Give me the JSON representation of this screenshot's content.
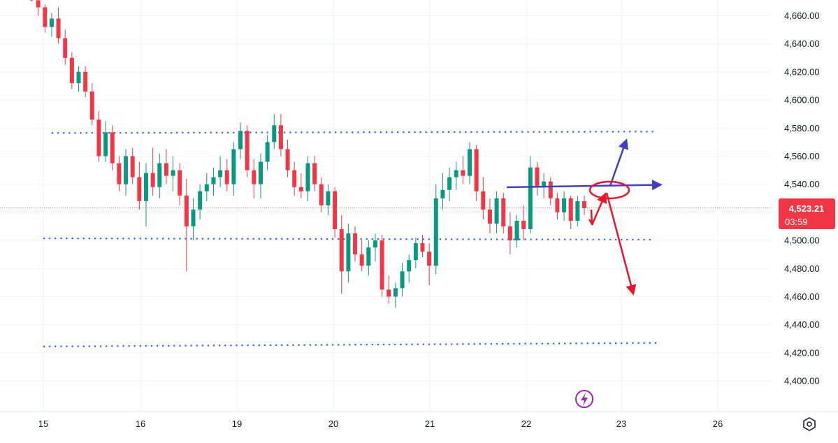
{
  "chart_data": {
    "type": "candlestick",
    "symbol": "",
    "x_dates": [
      "15",
      "16",
      "19",
      "20",
      "21",
      "22",
      "23",
      "26"
    ],
    "y_ticks": [
      "4,660.00",
      "4,640.00",
      "4,620.00",
      "4,600.00",
      "4,580.00",
      "4,560.00",
      "4,540.00",
      "4,520.00",
      "4,500.00",
      "4,480.00",
      "4,460.00",
      "4,440.00",
      "4,420.00",
      "4,400.00"
    ],
    "y_tick_values": [
      4660,
      4640,
      4620,
      4600,
      4580,
      4560,
      4540,
      4520,
      4500,
      4480,
      4460,
      4440,
      4420,
      4400
    ],
    "ylim": [
      4382,
      4671
    ],
    "current_price": 4523.21,
    "current_price_label": "4,523.21",
    "countdown_label": "03:59",
    "up_color": "#089981",
    "down_color": "#f23645",
    "candles": [
      [
        4674,
        4678,
        4670,
        4671
      ],
      [
        4671,
        4677,
        4660,
        4666
      ],
      [
        4666,
        4668,
        4648,
        4652
      ],
      [
        4652,
        4662,
        4645,
        4658
      ],
      [
        4658,
        4666,
        4640,
        4644
      ],
      [
        4644,
        4650,
        4625,
        4630
      ],
      [
        4630,
        4634,
        4608,
        4612
      ],
      [
        4612,
        4624,
        4606,
        4620
      ],
      [
        4620,
        4624,
        4602,
        4606
      ],
      [
        4606,
        4612,
        4582,
        4586
      ],
      [
        4586,
        4592,
        4556,
        4560
      ],
      [
        4560,
        4585,
        4556,
        4577
      ],
      [
        4577,
        4582,
        4550,
        4555
      ],
      [
        4555,
        4560,
        4535,
        4540
      ],
      [
        4540,
        4565,
        4532,
        4560
      ],
      [
        4560,
        4566,
        4540,
        4545
      ],
      [
        4545,
        4556,
        4522,
        4528
      ],
      [
        4528,
        4555,
        4510,
        4548
      ],
      [
        4548,
        4566,
        4532,
        4538
      ],
      [
        4538,
        4562,
        4530,
        4555
      ],
      [
        4555,
        4565,
        4540,
        4546
      ],
      [
        4546,
        4560,
        4535,
        4550
      ],
      [
        4550,
        4555,
        4525,
        4532
      ],
      [
        4532,
        4544,
        4478,
        4510
      ],
      [
        4510,
        4530,
        4500,
        4522
      ],
      [
        4522,
        4540,
        4515,
        4535
      ],
      [
        4535,
        4548,
        4528,
        4540
      ],
      [
        4540,
        4552,
        4532,
        4545
      ],
      [
        4545,
        4560,
        4538,
        4550
      ],
      [
        4550,
        4558,
        4535,
        4540
      ],
      [
        4540,
        4570,
        4532,
        4565
      ],
      [
        4565,
        4584,
        4558,
        4578
      ],
      [
        4578,
        4582,
        4545,
        4550
      ],
      [
        4550,
        4558,
        4530,
        4540
      ],
      [
        4540,
        4562,
        4530,
        4556
      ],
      [
        4556,
        4575,
        4550,
        4570
      ],
      [
        4570,
        4590,
        4565,
        4582
      ],
      [
        4582,
        4590,
        4560,
        4565
      ],
      [
        4565,
        4572,
        4545,
        4550
      ],
      [
        4550,
        4556,
        4532,
        4538
      ],
      [
        4538,
        4548,
        4530,
        4535
      ],
      [
        4535,
        4560,
        4528,
        4555
      ],
      [
        4555,
        4560,
        4535,
        4540
      ],
      [
        4540,
        4545,
        4520,
        4525
      ],
      [
        4525,
        4540,
        4518,
        4535
      ],
      [
        4535,
        4538,
        4502,
        4508
      ],
      [
        4508,
        4518,
        4462,
        4478
      ],
      [
        4478,
        4512,
        4470,
        4505
      ],
      [
        4505,
        4510,
        4485,
        4490
      ],
      [
        4490,
        4500,
        4478,
        4482
      ],
      [
        4482,
        4500,
        4475,
        4495
      ],
      [
        4495,
        4505,
        4485,
        4500
      ],
      [
        4500,
        4504,
        4460,
        4465
      ],
      [
        4465,
        4475,
        4455,
        4460
      ],
      [
        4460,
        4470,
        4452,
        4466
      ],
      [
        4466,
        4484,
        4460,
        4478
      ],
      [
        4478,
        4490,
        4470,
        4486
      ],
      [
        4486,
        4502,
        4480,
        4498
      ],
      [
        4498,
        4504,
        4488,
        4492
      ],
      [
        4492,
        4498,
        4468,
        4482
      ],
      [
        4482,
        4540,
        4476,
        4530
      ],
      [
        4530,
        4548,
        4522,
        4536
      ],
      [
        4536,
        4552,
        4528,
        4545
      ],
      [
        4545,
        4556,
        4536,
        4550
      ],
      [
        4550,
        4560,
        4540,
        4546
      ],
      [
        4546,
        4570,
        4540,
        4565
      ],
      [
        4565,
        4568,
        4528,
        4535
      ],
      [
        4535,
        4545,
        4515,
        4522
      ],
      [
        4522,
        4530,
        4505,
        4512
      ],
      [
        4512,
        4535,
        4505,
        4530
      ],
      [
        4530,
        4534,
        4505,
        4510
      ],
      [
        4510,
        4520,
        4490,
        4500
      ],
      [
        4500,
        4518,
        4495,
        4514
      ],
      [
        4514,
        4525,
        4500,
        4508
      ],
      [
        4508,
        4560,
        4505,
        4552
      ],
      [
        4552,
        4556,
        4532,
        4538
      ],
      [
        4538,
        4548,
        4530,
        4542
      ],
      [
        4542,
        4545,
        4525,
        4530
      ],
      [
        4530,
        4534,
        4515,
        4520
      ],
      [
        4520,
        4535,
        4514,
        4530
      ],
      [
        4530,
        4532,
        4508,
        4514
      ],
      [
        4514,
        4532,
        4510,
        4528
      ],
      [
        4528,
        4532,
        4518,
        4523
      ]
    ]
  }
}
